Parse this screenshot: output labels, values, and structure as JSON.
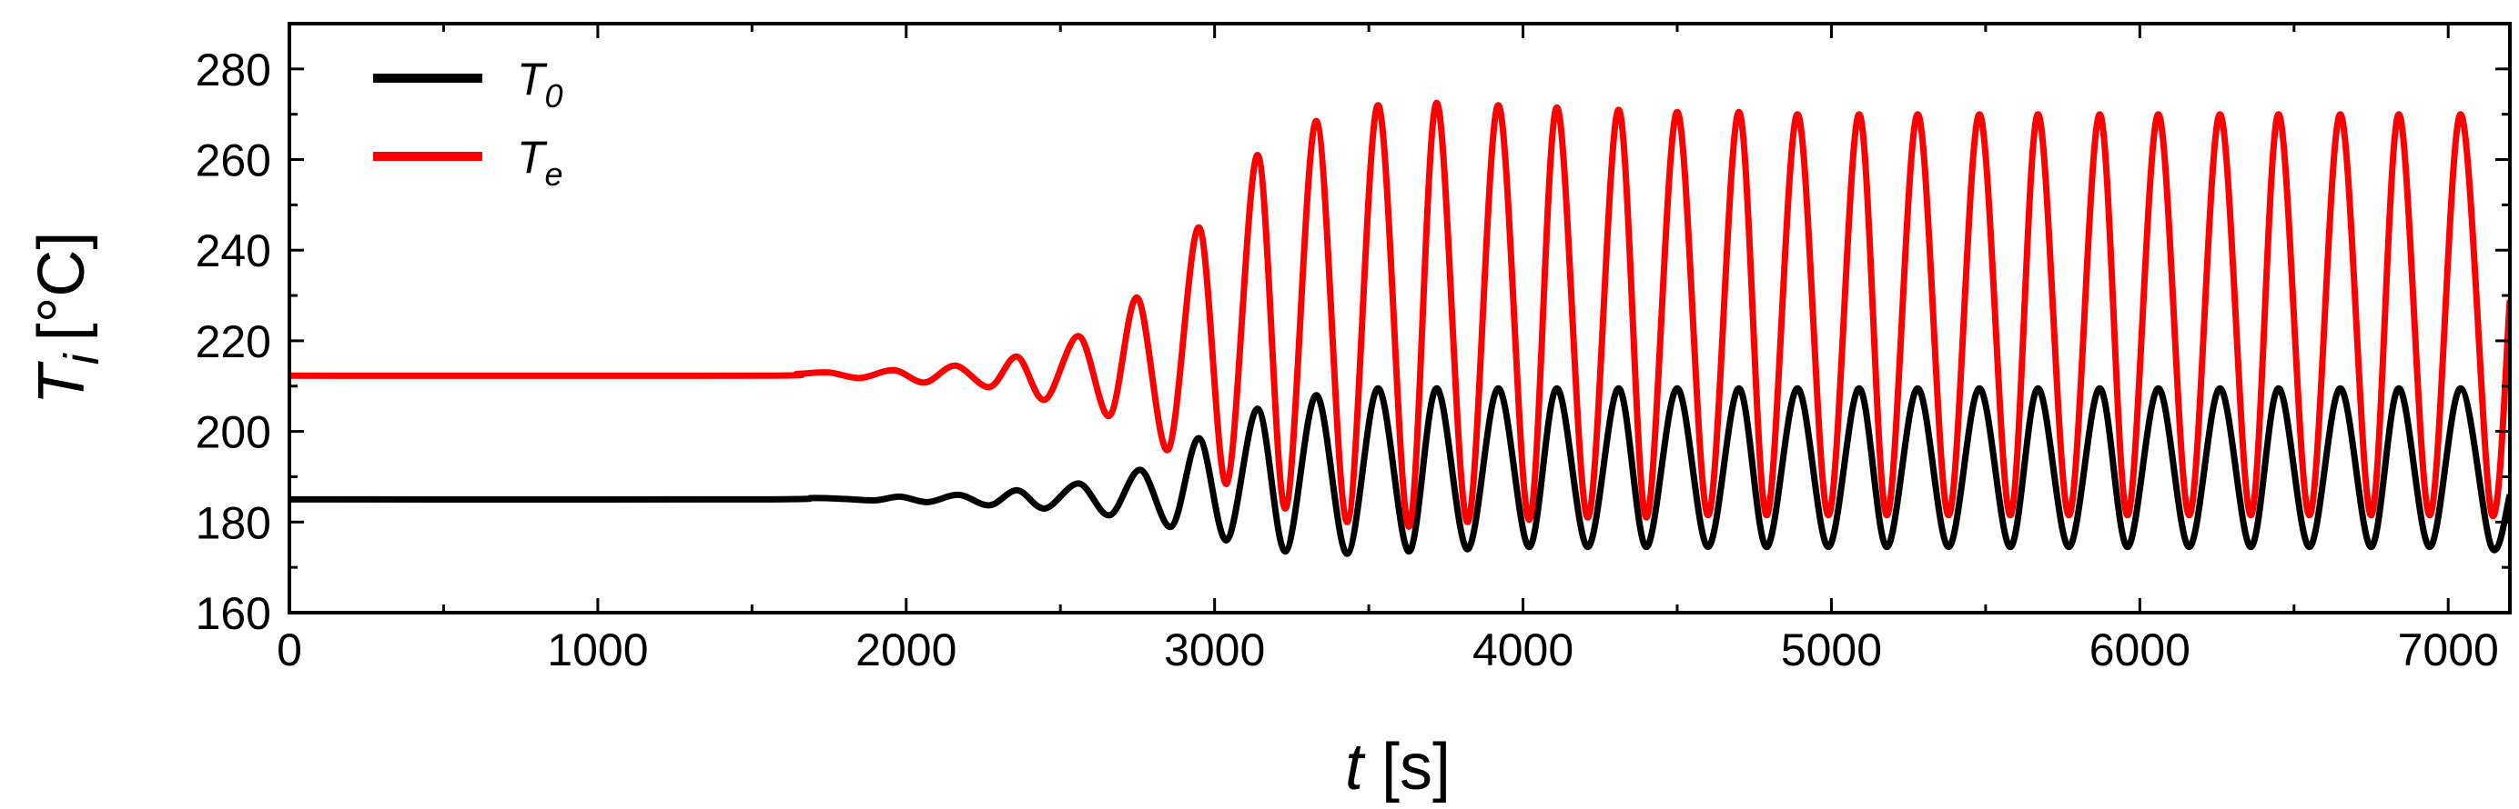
{
  "chart_data": {
    "type": "line",
    "xlabel": {
      "symbol": "t",
      "unit": "[s]"
    },
    "ylabel": {
      "symbol": "T",
      "subscript": "i",
      "unit": "[°C]"
    },
    "xlim": [
      0,
      7200
    ],
    "ylim": [
      160,
      290
    ],
    "x_ticks": [
      0,
      1000,
      2000,
      3000,
      4000,
      5000,
      6000,
      7000
    ],
    "x_tick_labels": [
      "0",
      "1000",
      "2000",
      "3000",
      "4000",
      "5000",
      "6000",
      "7000"
    ],
    "y_ticks": [
      160,
      180,
      200,
      220,
      240,
      260,
      280
    ],
    "y_tick_labels": [
      "160",
      "180",
      "200",
      "220",
      "240",
      "260",
      "280"
    ],
    "grid": false,
    "legend_position": "top-left",
    "series": [
      {
        "name": "T",
        "name_subscript": "0",
        "color": "#000000",
        "points": [
          [
            0,
            185
          ],
          [
            1500,
            185
          ],
          [
            1700,
            185.3
          ],
          [
            1800,
            185.1
          ],
          [
            1900,
            184.8
          ],
          [
            1980,
            185.6
          ],
          [
            2070,
            184.4
          ],
          [
            2170,
            186
          ],
          [
            2270,
            183.7
          ],
          [
            2360,
            187
          ],
          [
            2450,
            183
          ],
          [
            2560,
            188.5
          ],
          [
            2660,
            181.5
          ],
          [
            2760,
            191.5
          ],
          [
            2860,
            179
          ],
          [
            2950,
            198.5
          ],
          [
            3040,
            176
          ],
          [
            3140,
            205
          ],
          [
            3230,
            173.5
          ],
          [
            3330,
            208
          ],
          [
            3430,
            173
          ],
          [
            3530,
            209.5
          ],
          [
            3630,
            173.5
          ],
          [
            3720,
            209.5
          ],
          [
            3820,
            174
          ],
          [
            3920,
            209.5
          ],
          [
            4020,
            174.5
          ],
          [
            4110,
            209.5
          ],
          [
            4210,
            174.5
          ],
          [
            4310,
            209.5
          ],
          [
            4400,
            174.5
          ],
          [
            4500,
            209.5
          ],
          [
            4600,
            174.5
          ],
          [
            4700,
            209.5
          ],
          [
            4790,
            174.5
          ],
          [
            4890,
            209.5
          ],
          [
            4990,
            174.5
          ],
          [
            5090,
            209.5
          ],
          [
            5180,
            174.5
          ],
          [
            5280,
            209.5
          ],
          [
            5380,
            174.5
          ],
          [
            5480,
            209.5
          ],
          [
            5580,
            174.5
          ],
          [
            5670,
            209.5
          ],
          [
            5770,
            174.5
          ],
          [
            5870,
            209.5
          ],
          [
            5960,
            174.5
          ],
          [
            6060,
            209.5
          ],
          [
            6160,
            174.5
          ],
          [
            6260,
            209.5
          ],
          [
            6360,
            174.5
          ],
          [
            6450,
            209.5
          ],
          [
            6550,
            174.5
          ],
          [
            6650,
            209.5
          ],
          [
            6750,
            174.5
          ],
          [
            6840,
            209.5
          ],
          [
            6940,
            174.5
          ],
          [
            7040,
            209.5
          ],
          [
            7140,
            174.5
          ],
          [
            7200,
            186
          ]
        ]
      },
      {
        "name": "T",
        "name_subscript": "e",
        "color": "#ff0000",
        "points": [
          [
            0,
            212.3
          ],
          [
            1500,
            212.3
          ],
          [
            1650,
            212.7
          ],
          [
            1750,
            213
          ],
          [
            1850,
            211.8
          ],
          [
            1960,
            213.5
          ],
          [
            2060,
            210.8
          ],
          [
            2160,
            214.5
          ],
          [
            2270,
            209.8
          ],
          [
            2360,
            216.5
          ],
          [
            2450,
            207
          ],
          [
            2560,
            221
          ],
          [
            2660,
            203.5
          ],
          [
            2750,
            229.5
          ],
          [
            2850,
            196
          ],
          [
            2950,
            245
          ],
          [
            3040,
            188.5
          ],
          [
            3140,
            261
          ],
          [
            3230,
            183
          ],
          [
            3330,
            268.5
          ],
          [
            3430,
            180
          ],
          [
            3530,
            272
          ],
          [
            3630,
            179
          ],
          [
            3720,
            272.5
          ],
          [
            3820,
            180
          ],
          [
            3920,
            272
          ],
          [
            4020,
            180.5
          ],
          [
            4110,
            271.5
          ],
          [
            4210,
            181
          ],
          [
            4310,
            271
          ],
          [
            4400,
            181
          ],
          [
            4500,
            270.5
          ],
          [
            4600,
            181.5
          ],
          [
            4700,
            270.5
          ],
          [
            4790,
            181.5
          ],
          [
            4890,
            270
          ],
          [
            4990,
            181.5
          ],
          [
            5090,
            270
          ],
          [
            5180,
            181.5
          ],
          [
            5280,
            270
          ],
          [
            5380,
            181.5
          ],
          [
            5480,
            270
          ],
          [
            5580,
            181.5
          ],
          [
            5670,
            270
          ],
          [
            5770,
            181.5
          ],
          [
            5870,
            270
          ],
          [
            5960,
            181.5
          ],
          [
            6060,
            270
          ],
          [
            6160,
            181.5
          ],
          [
            6260,
            270
          ],
          [
            6360,
            181.5
          ],
          [
            6450,
            270
          ],
          [
            6550,
            181.5
          ],
          [
            6650,
            270
          ],
          [
            6750,
            181.5
          ],
          [
            6840,
            270
          ],
          [
            6940,
            181.5
          ],
          [
            7040,
            270
          ],
          [
            7140,
            182
          ],
          [
            7200,
            229
          ]
        ]
      }
    ]
  }
}
